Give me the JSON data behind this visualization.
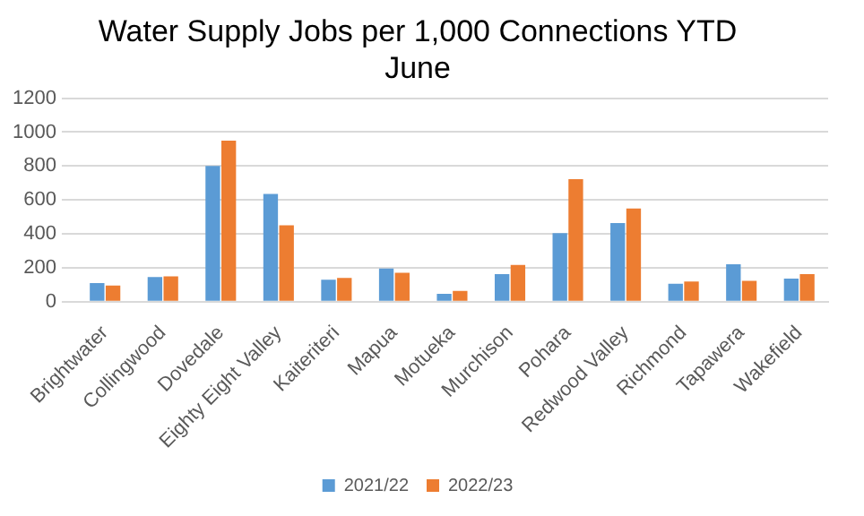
{
  "chart_data": {
    "type": "bar",
    "title": "Water Supply Jobs per 1,000 Connections YTD",
    "subtitle": "June",
    "categories": [
      "Brightwater",
      "Collingwood",
      "Dovedale",
      "Eighty Eight Valley",
      "Kaiteriteri",
      "Mapua",
      "Motueka",
      "Murchison",
      "Pohara",
      "Redwood Valley",
      "Richmond",
      "Tapawera",
      "Wakefield"
    ],
    "series": [
      {
        "name": "2021/22",
        "color": "#5b9bd5",
        "values": [
          110,
          145,
          800,
          635,
          130,
          195,
          47,
          162,
          404,
          464,
          106,
          221,
          136
        ]
      },
      {
        "name": "2022/23",
        "color": "#ed7d31",
        "values": [
          95,
          150,
          950,
          450,
          140,
          170,
          64,
          217,
          723,
          549,
          119,
          123,
          162
        ]
      }
    ],
    "ylim": [
      0,
      1200
    ],
    "yticks": [
      0,
      200,
      400,
      600,
      800,
      1000,
      1200
    ],
    "grid": "y",
    "legend": "bottom"
  }
}
